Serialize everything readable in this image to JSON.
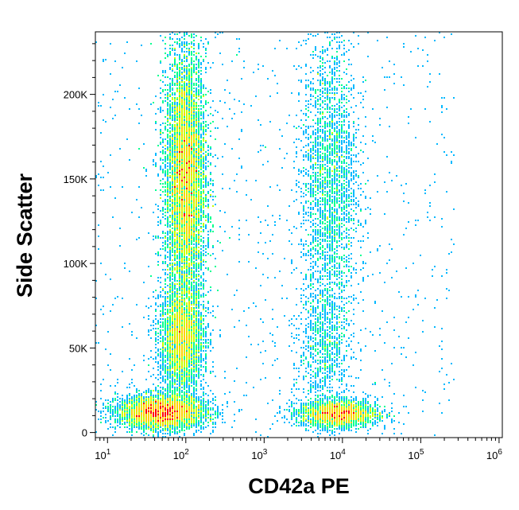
{
  "chart_data": {
    "type": "scatter",
    "title": "",
    "xlabel": "CD42a PE",
    "ylabel": "Side Scatter",
    "x_scale": "log",
    "xlim": [
      7,
      1100000
    ],
    "ylim": [
      -3000,
      237000
    ],
    "x_ticks": [
      {
        "base": "10",
        "exp": "1",
        "value": 10
      },
      {
        "base": "10",
        "exp": "2",
        "value": 100
      },
      {
        "base": "10",
        "exp": "3",
        "value": 1000
      },
      {
        "base": "10",
        "exp": "4",
        "value": 10000
      },
      {
        "base": "10",
        "exp": "5",
        "value": 100000
      },
      {
        "base": "10",
        "exp": "6",
        "value": 1000000
      }
    ],
    "y_ticks": [
      {
        "label": "0",
        "value": 0
      },
      {
        "label": "50K",
        "value": 50000
      },
      {
        "label": "100K",
        "value": 100000
      },
      {
        "label": "150K",
        "value": 150000
      },
      {
        "label": "200K",
        "value": 200000
      }
    ],
    "grid": false,
    "legend": "none",
    "density_colormap": [
      "#0000ff",
      "#00b8ff",
      "#00ff90",
      "#c8ff00",
      "#ffd000",
      "#ff0000"
    ],
    "populations": [
      {
        "x_center": 100,
        "x_spread_log": 0.13,
        "y_center": 150000,
        "y_spread": 38000,
        "weight": 9000
      },
      {
        "x_center": 90,
        "x_spread_log": 0.14,
        "y_center": 55000,
        "y_spread": 16000,
        "weight": 3500
      },
      {
        "x_center": 50,
        "x_spread_log": 0.28,
        "y_center": 12000,
        "y_spread": 5000,
        "weight": 4500
      },
      {
        "x_center": 7000,
        "x_spread_log": 0.18,
        "y_center": 150000,
        "y_spread": 42000,
        "weight": 2600
      },
      {
        "x_center": 6000,
        "x_spread_log": 0.17,
        "y_center": 50000,
        "y_spread": 22000,
        "weight": 900
      },
      {
        "x_center": 9000,
        "x_spread_log": 0.25,
        "y_center": 11000,
        "y_spread": 4000,
        "weight": 2600
      }
    ]
  }
}
